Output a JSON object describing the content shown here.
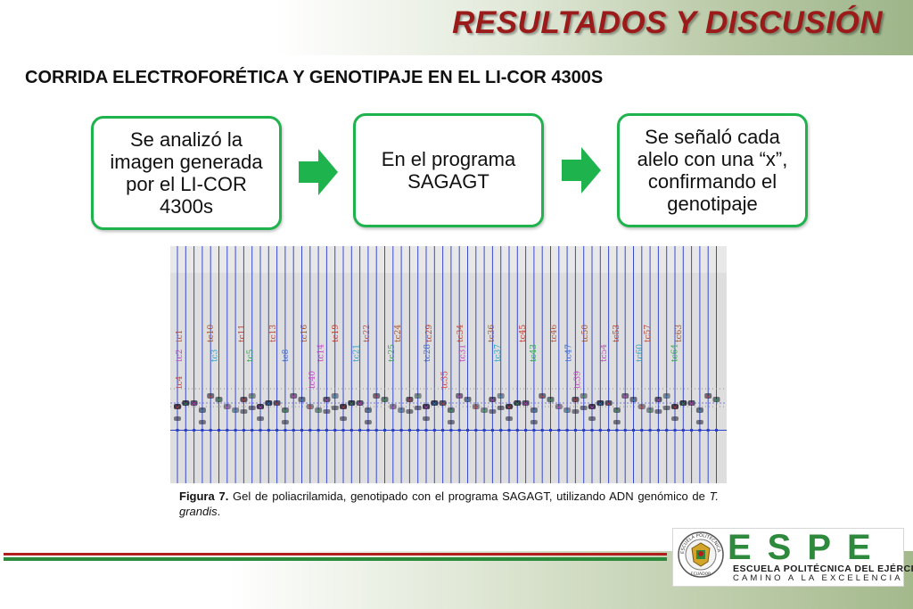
{
  "header": {
    "title": "RESULTADOS Y DISCUSIÓN"
  },
  "subtitle": "CORRIDA ELECTROFORÉTICA Y GENOTIPAJE EN EL LI-COR 4300S",
  "steps": [
    {
      "text": "Se analizó la imagen generada por el LI-COR 4300s"
    },
    {
      "text": "En el programa SAGAGT"
    },
    {
      "text": "Se señaló cada alelo con una “x”, confirmando el genotipaje"
    }
  ],
  "gel": {
    "lane_labels_top": [
      "tc1",
      "tc10",
      "tc11",
      "tc13",
      "tc16",
      "tc19",
      "tc22",
      "tc24",
      "tc29",
      "tc34",
      "tc36",
      "tc45",
      "tc46",
      "tc50",
      "tc53",
      "tc57",
      "tc63"
    ],
    "lane_labels_mid": [
      "tc2",
      "tc3",
      "tc5",
      "tc8",
      "tc14",
      "tc21",
      "tc25",
      "tc28",
      "tc31",
      "tc37",
      "tc43",
      "tc47",
      "tc54",
      "tc60",
      "tc64"
    ],
    "lane_labels_low": [
      "tc4",
      "tc40",
      "tc35",
      "tc39"
    ]
  },
  "caption": {
    "label": "Figura 7.",
    "text": " Gel de poliacrilamida, genotipado con el programa SAGAGT, utilizando ADN genómico de ",
    "species": "T. grandis",
    "end": "."
  },
  "logo": {
    "letters": "ESPE",
    "name": "ESCUELA POLITÉCNICA DEL EJÉRCITO",
    "motto": "CAMINO A LA EXCELENCIA",
    "seal_text": "ESCUELA POLITÉCNICA DEL EJÉRCITO",
    "seal_country": "ECUADOR"
  },
  "colors": {
    "title": "#9b1b1b",
    "accent_green": "#1eb34d",
    "stripe_red": "#b21e1e",
    "stripe_green": "#2a8a3a"
  }
}
